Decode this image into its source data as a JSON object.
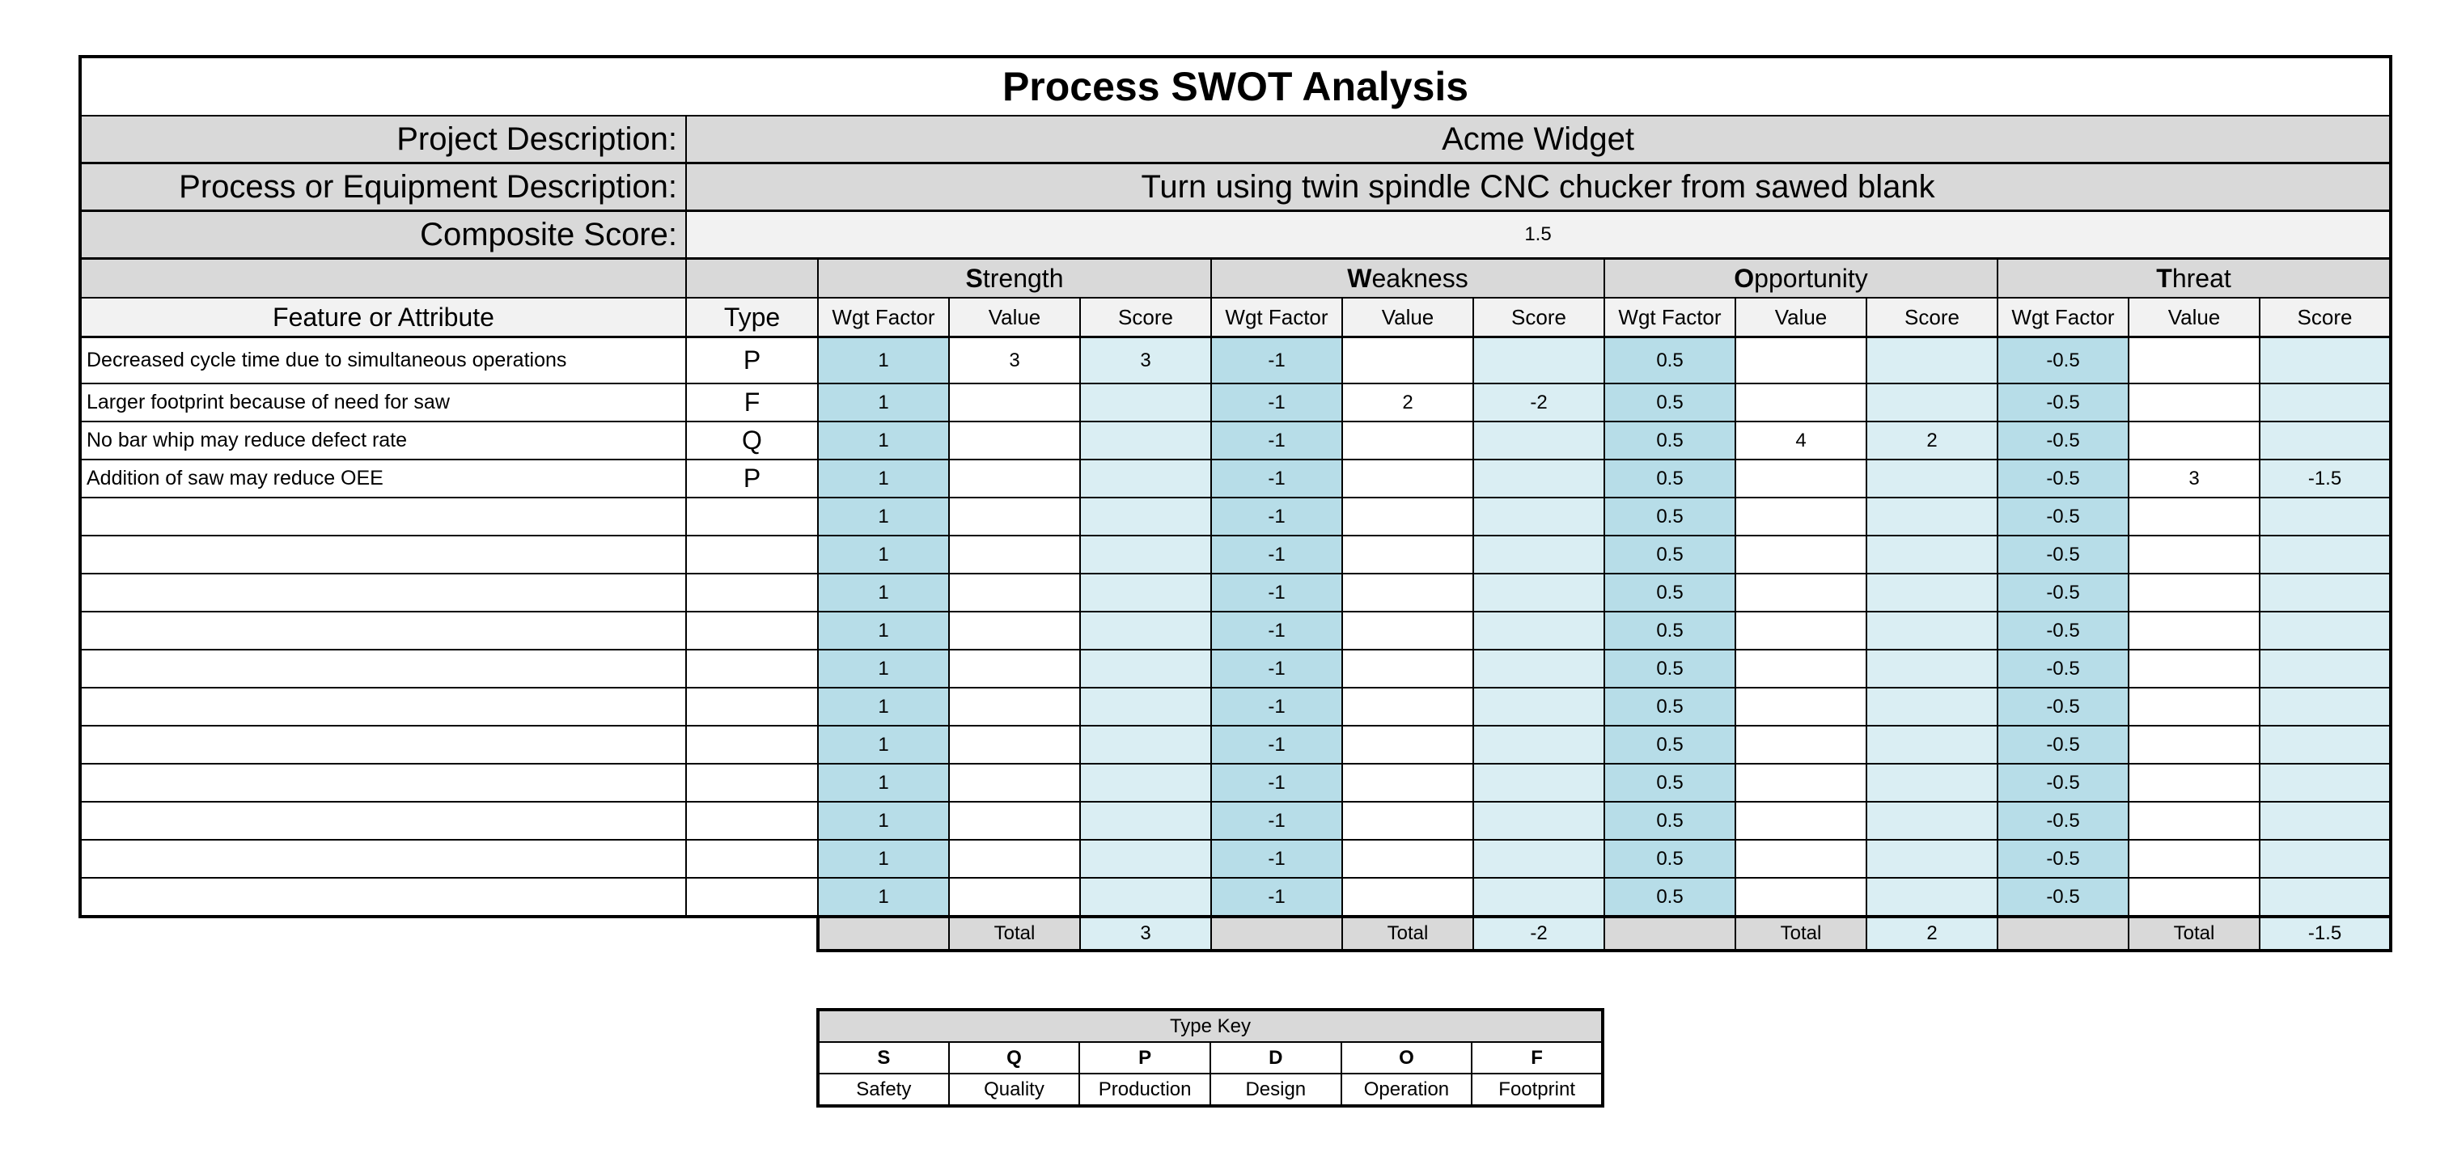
{
  "title": "Process SWOT Analysis",
  "project_label": "Project Description:",
  "project_value": "Acme  Widget",
  "process_label": "Process or Equipment Description:",
  "process_value": "Turn using twin spindle CNC chucker from sawed blank",
  "composite_label": "Composite Score:",
  "composite_value": "1.5",
  "headers": {
    "feature": "Feature or Attribute",
    "type": "Type",
    "wgt": "Wgt Factor",
    "value": "Value",
    "score": "Score",
    "total": "Total"
  },
  "categories": [
    {
      "initial": "S",
      "rest": "trength",
      "wgt": "1",
      "total": "3"
    },
    {
      "initial": "W",
      "rest": "eakness",
      "wgt": "-1",
      "total": "-2"
    },
    {
      "initial": "O",
      "rest": "pportunity",
      "wgt": "0.5",
      "total": "2"
    },
    {
      "initial": "T",
      "rest": "hreat",
      "wgt": "-0.5",
      "total": "-1.5"
    }
  ],
  "rows": [
    {
      "feature": "Decreased cycle time due to simultaneous operations",
      "type": "P",
      "values": [
        "3",
        "",
        "",
        ""
      ],
      "scores": [
        "3",
        "",
        "",
        ""
      ]
    },
    {
      "feature": "Larger footprint because of need for saw",
      "type": "F",
      "values": [
        "",
        "2",
        "",
        ""
      ],
      "scores": [
        "",
        "-2",
        "",
        ""
      ]
    },
    {
      "feature": "No bar whip may reduce defect rate",
      "type": "Q",
      "values": [
        "",
        "",
        "4",
        ""
      ],
      "scores": [
        "",
        "",
        "2",
        ""
      ]
    },
    {
      "feature": "Addition of saw may reduce OEE",
      "type": "P",
      "values": [
        "",
        "",
        "",
        "3"
      ],
      "scores": [
        "",
        "",
        "",
        "-1.5"
      ]
    },
    {
      "feature": "",
      "type": "",
      "values": [
        "",
        "",
        "",
        ""
      ],
      "scores": [
        "",
        "",
        "",
        ""
      ]
    },
    {
      "feature": "",
      "type": "",
      "values": [
        "",
        "",
        "",
        ""
      ],
      "scores": [
        "",
        "",
        "",
        ""
      ]
    },
    {
      "feature": "",
      "type": "",
      "values": [
        "",
        "",
        "",
        ""
      ],
      "scores": [
        "",
        "",
        "",
        ""
      ]
    },
    {
      "feature": "",
      "type": "",
      "values": [
        "",
        "",
        "",
        ""
      ],
      "scores": [
        "",
        "",
        "",
        ""
      ]
    },
    {
      "feature": "",
      "type": "",
      "values": [
        "",
        "",
        "",
        ""
      ],
      "scores": [
        "",
        "",
        "",
        ""
      ]
    },
    {
      "feature": "",
      "type": "",
      "values": [
        "",
        "",
        "",
        ""
      ],
      "scores": [
        "",
        "",
        "",
        ""
      ]
    },
    {
      "feature": "",
      "type": "",
      "values": [
        "",
        "",
        "",
        ""
      ],
      "scores": [
        "",
        "",
        "",
        ""
      ]
    },
    {
      "feature": "",
      "type": "",
      "values": [
        "",
        "",
        "",
        ""
      ],
      "scores": [
        "",
        "",
        "",
        ""
      ]
    },
    {
      "feature": "",
      "type": "",
      "values": [
        "",
        "",
        "",
        ""
      ],
      "scores": [
        "",
        "",
        "",
        ""
      ]
    },
    {
      "feature": "",
      "type": "",
      "values": [
        "",
        "",
        "",
        ""
      ],
      "scores": [
        "",
        "",
        "",
        ""
      ]
    },
    {
      "feature": "",
      "type": "",
      "values": [
        "",
        "",
        "",
        ""
      ],
      "scores": [
        "",
        "",
        "",
        ""
      ]
    }
  ],
  "type_key": {
    "title": "Type Key",
    "codes": [
      "S",
      "Q",
      "P",
      "D",
      "O",
      "F"
    ],
    "names": [
      "Safety",
      "Quality",
      "Production",
      "Design",
      "Operation",
      "Footprint"
    ]
  },
  "colors": {
    "wgt_cell": "#b7dde8",
    "score_cell": "#daeef3",
    "header_gray": "#d9d9d9",
    "light_gray": "#f2f2f2"
  }
}
